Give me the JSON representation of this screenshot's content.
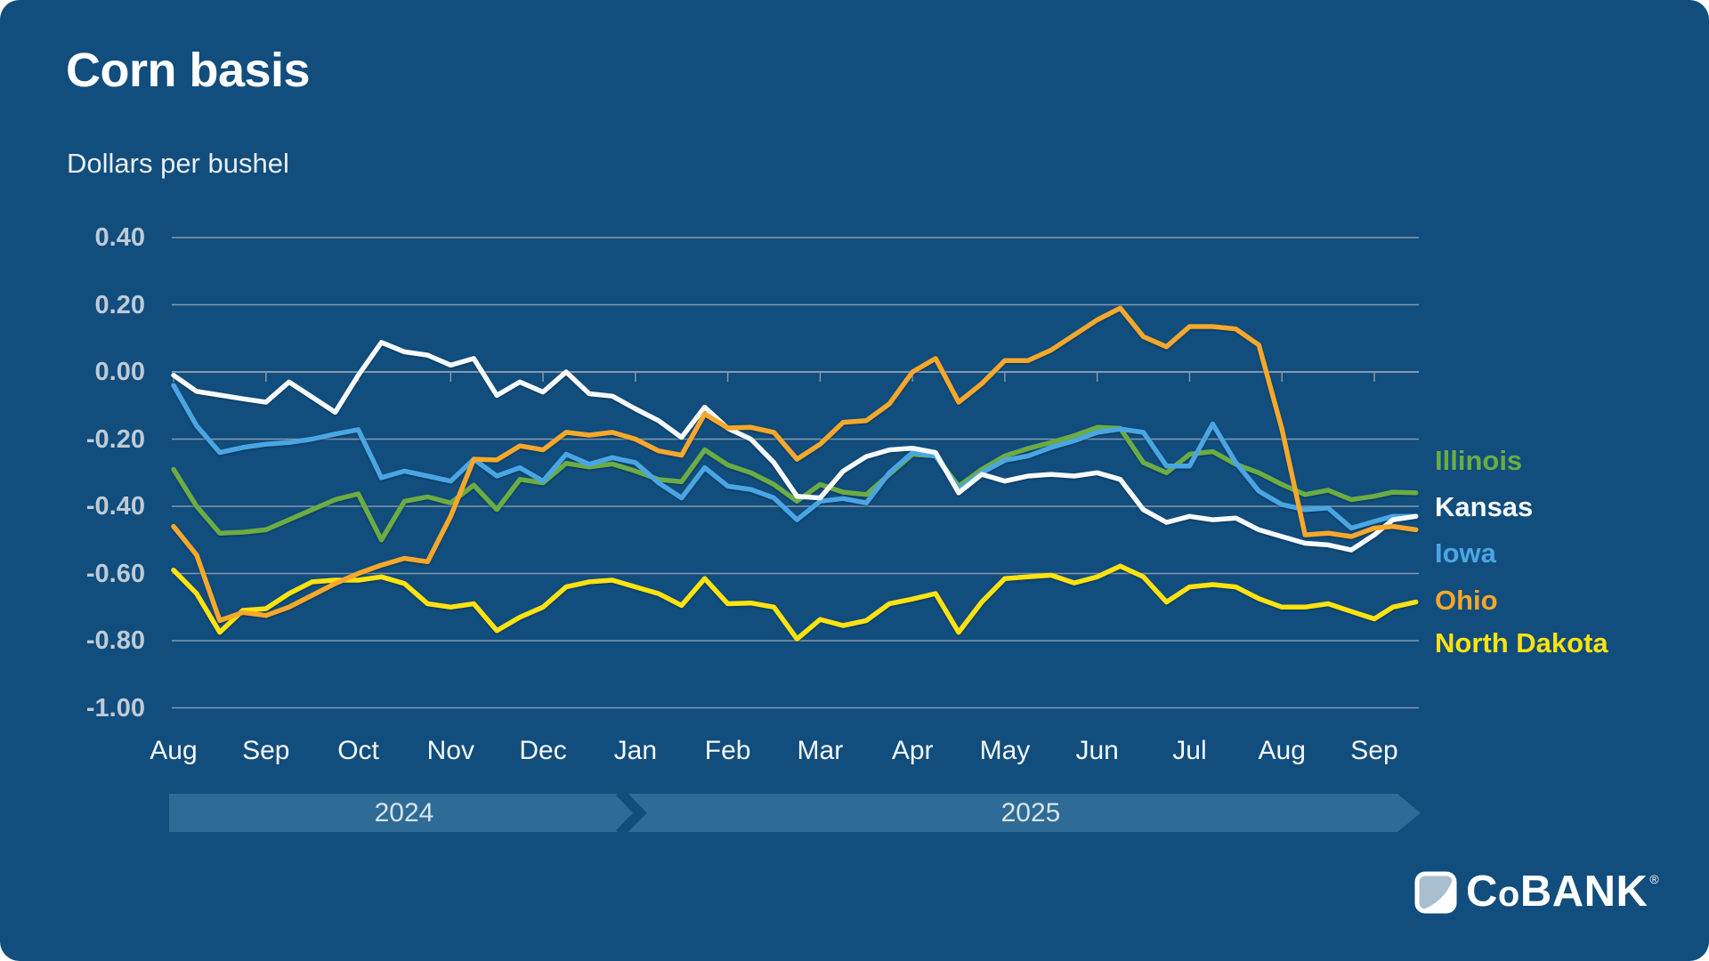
{
  "title": "Corn basis",
  "subtitle": "Dollars per bushel",
  "colors": {
    "background": "#114D7D",
    "gridline": "#8699AA",
    "timeline_bar": "#2E6B96",
    "y_tick_text": "#BECBD7",
    "x_tick_text": "#F5F9FC"
  },
  "timeline": {
    "year_2024": "2024",
    "year_2025": "2025"
  },
  "logo": {
    "text_c": "C",
    "text_o": "o",
    "text_bank": "BANK",
    "reg": "®"
  },
  "chart_data": {
    "type": "line",
    "title": "Corn basis",
    "ylabel": "Dollars per bushel",
    "ylim": [
      -1.0,
      0.4
    ],
    "grid": "horizontal",
    "legend_position": "right",
    "y_axis": {
      "tick_labels": [
        "0.40",
        "0.20",
        "0.00",
        "-0.20",
        "-0.40",
        "-0.60",
        "-0.80",
        "-1.00"
      ],
      "tick_values": [
        0.4,
        0.2,
        0.0,
        -0.2,
        -0.4,
        -0.6,
        -0.8,
        -1.0
      ]
    },
    "x_axis": {
      "months": [
        "Aug",
        "Sep",
        "Oct",
        "Nov",
        "Dec",
        "Jan",
        "Feb",
        "Mar",
        "Apr",
        "May",
        "Jun",
        "Jul",
        "Aug",
        "Sep"
      ],
      "years": [
        "2024",
        "2025"
      ],
      "points_per_month": 4,
      "tail_t": [
        13.2,
        13.45
      ]
    },
    "series": [
      {
        "name": "Illinois",
        "color": "#6BAC44",
        "z": 1,
        "values": [
          -0.29,
          -0.4,
          -0.48,
          -0.477,
          -0.47,
          -0.44,
          -0.41,
          -0.38,
          -0.363,
          -0.5,
          -0.385,
          -0.372,
          -0.39,
          -0.337,
          -0.41,
          -0.32,
          -0.33,
          -0.272,
          -0.283,
          -0.274,
          -0.295,
          -0.32,
          -0.327,
          -0.232,
          -0.277,
          -0.3,
          -0.335,
          -0.385,
          -0.335,
          -0.358,
          -0.365,
          -0.305,
          -0.245,
          -0.25,
          -0.34,
          -0.29,
          -0.25,
          -0.228,
          -0.21,
          -0.19,
          -0.165,
          -0.168,
          -0.27,
          -0.3,
          -0.245,
          -0.237,
          -0.275,
          -0.3,
          -0.335,
          -0.365,
          -0.352,
          -0.38,
          -0.37,
          -0.358,
          -0.36
        ]
      },
      {
        "name": "Kansas",
        "color": "#F7FBFD",
        "z": 3,
        "values": [
          -0.01,
          -0.058,
          -0.069,
          -0.08,
          -0.09,
          -0.03,
          -0.075,
          -0.12,
          -0.01,
          0.088,
          0.06,
          0.05,
          0.02,
          0.04,
          -0.07,
          -0.03,
          -0.06,
          0.0,
          -0.065,
          -0.072,
          -0.11,
          -0.145,
          -0.195,
          -0.105,
          -0.168,
          -0.2,
          -0.27,
          -0.37,
          -0.375,
          -0.295,
          -0.252,
          -0.232,
          -0.227,
          -0.24,
          -0.36,
          -0.305,
          -0.325,
          -0.31,
          -0.305,
          -0.31,
          -0.3,
          -0.32,
          -0.41,
          -0.448,
          -0.43,
          -0.44,
          -0.435,
          -0.47,
          -0.49,
          -0.51,
          -0.515,
          -0.53,
          -0.485,
          -0.44,
          -0.43
        ]
      },
      {
        "name": "Iowa",
        "color": "#4AA6E3",
        "z": 2,
        "values": [
          -0.04,
          -0.16,
          -0.24,
          -0.225,
          -0.215,
          -0.21,
          -0.2,
          -0.185,
          -0.172,
          -0.315,
          -0.295,
          -0.31,
          -0.325,
          -0.26,
          -0.31,
          -0.285,
          -0.325,
          -0.245,
          -0.275,
          -0.255,
          -0.27,
          -0.33,
          -0.375,
          -0.285,
          -0.34,
          -0.35,
          -0.375,
          -0.44,
          -0.385,
          -0.377,
          -0.39,
          -0.3,
          -0.24,
          -0.25,
          -0.35,
          -0.3,
          -0.263,
          -0.25,
          -0.225,
          -0.205,
          -0.18,
          -0.17,
          -0.18,
          -0.28,
          -0.28,
          -0.155,
          -0.27,
          -0.355,
          -0.395,
          -0.41,
          -0.405,
          -0.465,
          -0.445,
          -0.43,
          -0.43
        ]
      },
      {
        "name": "Ohio",
        "color": "#F5A82B",
        "z": 5,
        "values": [
          -0.46,
          -0.545,
          -0.74,
          -0.716,
          -0.725,
          -0.7,
          -0.665,
          -0.63,
          -0.6,
          -0.575,
          -0.555,
          -0.565,
          -0.43,
          -0.26,
          -0.262,
          -0.22,
          -0.232,
          -0.18,
          -0.188,
          -0.18,
          -0.2,
          -0.235,
          -0.248,
          -0.125,
          -0.167,
          -0.165,
          -0.18,
          -0.26,
          -0.215,
          -0.15,
          -0.145,
          -0.095,
          0.0,
          0.04,
          -0.09,
          -0.035,
          0.034,
          0.034,
          0.065,
          0.11,
          0.155,
          0.19,
          0.105,
          0.075,
          0.135,
          0.135,
          0.128,
          0.08,
          -0.17,
          -0.485,
          -0.48,
          -0.49,
          -0.465,
          -0.46,
          -0.47
        ]
      },
      {
        "name": "North Dakota",
        "color": "#FFE311",
        "z": 4,
        "values": [
          -0.59,
          -0.66,
          -0.775,
          -0.71,
          -0.705,
          -0.66,
          -0.625,
          -0.62,
          -0.62,
          -0.61,
          -0.63,
          -0.69,
          -0.7,
          -0.69,
          -0.77,
          -0.73,
          -0.7,
          -0.64,
          -0.625,
          -0.62,
          -0.64,
          -0.66,
          -0.695,
          -0.615,
          -0.69,
          -0.688,
          -0.7,
          -0.795,
          -0.737,
          -0.755,
          -0.74,
          -0.69,
          -0.676,
          -0.66,
          -0.775,
          -0.685,
          -0.615,
          -0.61,
          -0.605,
          -0.628,
          -0.61,
          -0.578,
          -0.61,
          -0.685,
          -0.64,
          -0.633,
          -0.64,
          -0.675,
          -0.7,
          -0.7,
          -0.69,
          -0.713,
          -0.735,
          -0.7,
          -0.685
        ]
      }
    ]
  }
}
